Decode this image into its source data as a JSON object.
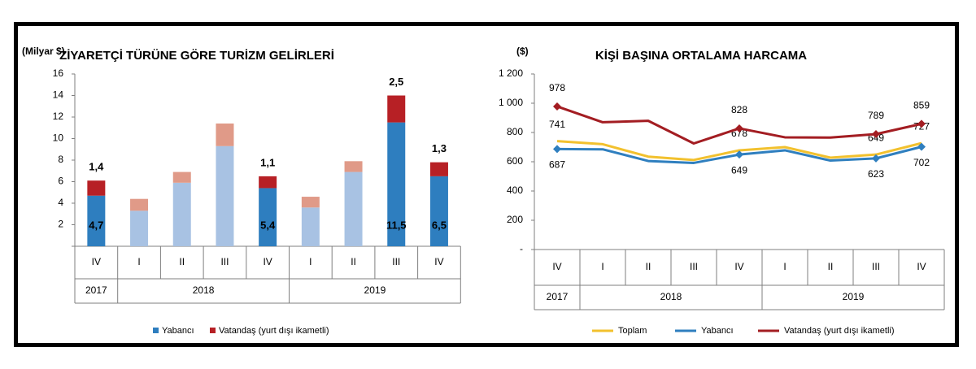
{
  "chart_data": [
    {
      "type": "bar",
      "stacked": true,
      "title": "ZİYARETÇİ TÜRÜNE GÖRE TURİZM GELİRLERİ",
      "unit_label": "(Milyar $)",
      "ylim": [
        0,
        16
      ],
      "yticks": [
        "16",
        "14",
        "12",
        "10",
        "8",
        "6",
        "4",
        "2",
        ""
      ],
      "grid": false,
      "legend_position": "bottom",
      "categories": [
        "IV",
        "I",
        "II",
        "III",
        "IV",
        "I",
        "II",
        "III",
        "IV"
      ],
      "years": [
        {
          "label": "2017",
          "span": 1
        },
        {
          "label": "2018",
          "span": 4
        },
        {
          "label": "2019",
          "span": 4
        }
      ],
      "series": [
        {
          "name": "Yabancı",
          "values": [
            4.7,
            3.3,
            5.9,
            9.3,
            5.4,
            3.6,
            6.9,
            11.5,
            6.5
          ]
        },
        {
          "name": "Vatandaş (yurt dışı ikametli)",
          "values": [
            1.4,
            1.1,
            1.0,
            2.1,
            1.1,
            1.0,
            1.0,
            2.5,
            1.3
          ]
        }
      ],
      "highlight": [
        true,
        false,
        false,
        false,
        true,
        false,
        false,
        true,
        true
      ],
      "bar_labels_bottom": [
        "4,7",
        "",
        "",
        "",
        "5,4",
        "",
        "",
        "11,5",
        "6,5"
      ],
      "bar_labels_top": [
        "1,4",
        "",
        "",
        "",
        "1,1",
        "",
        "",
        "2,5",
        "1,3"
      ],
      "colors": {
        "foreign": "#2e7ebf",
        "foreign_light": "#a8c2e3",
        "citizen": "#b72025",
        "citizen_light": "#e09a88"
      }
    },
    {
      "type": "line",
      "title": "KİŞİ BAŞINA ORTALAMA HARCAMA",
      "unit_label": "($)",
      "ylim": [
        0,
        1200
      ],
      "yticks": [
        "1 200",
        "1 000",
        "800",
        "600",
        "400",
        "200",
        "-"
      ],
      "grid": false,
      "legend_position": "bottom",
      "categories": [
        "IV",
        "I",
        "II",
        "III",
        "IV",
        "I",
        "II",
        "III",
        "IV"
      ],
      "years": [
        {
          "label": "2017",
          "span": 1
        },
        {
          "label": "2018",
          "span": 4
        },
        {
          "label": "2019",
          "span": 4
        }
      ],
      "series": [
        {
          "name": "Toplam",
          "color": "#f2c12e",
          "values": [
            741,
            720,
            635,
            612,
            678,
            700,
            628,
            649,
            727
          ],
          "labels": [
            "741",
            "",
            "",
            "",
            "678",
            "",
            "",
            "649",
            "727"
          ]
        },
        {
          "name": "Yabancı",
          "color": "#2f7fbf",
          "values": [
            687,
            685,
            605,
            592,
            649,
            678,
            608,
            623,
            702
          ],
          "labels": [
            "687",
            "",
            "",
            "",
            "649",
            "",
            "",
            "623",
            "702"
          ]
        },
        {
          "name": "Vatandaş (yurt dışı ikametli)",
          "color": "#a31d22",
          "values": [
            978,
            870,
            880,
            725,
            828,
            767,
            765,
            789,
            859
          ],
          "labels": [
            "978",
            "",
            "",
            "",
            "828",
            "",
            "",
            "789",
            "859"
          ]
        }
      ]
    }
  ]
}
